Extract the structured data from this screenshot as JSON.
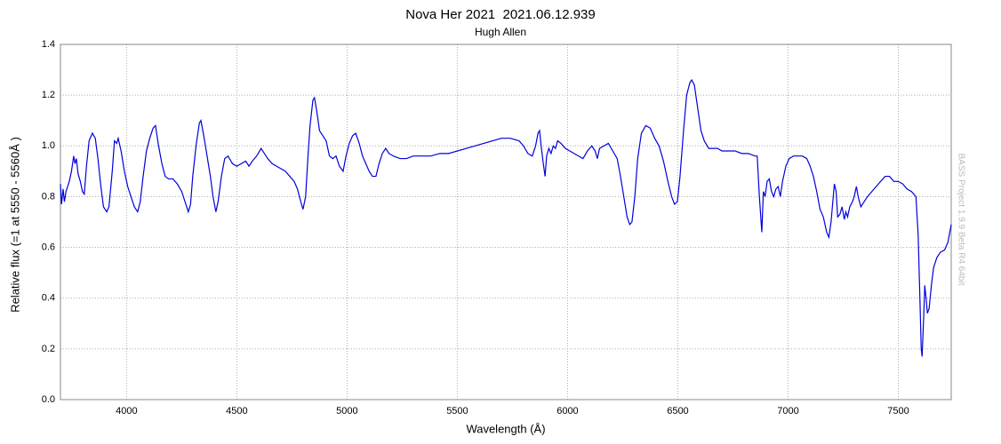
{
  "chart_data": {
    "type": "line",
    "title": "Nova Her 2021  2021.06.12.939",
    "subtitle": "Hugh Allen",
    "xlabel": "Wavelength (Å)",
    "ylabel": "Relative flux (=1 at 5550 - 5560Å )",
    "watermark": "BASS Project 1.9.9 Beta R4 64bit",
    "xlim": [
      3700,
      7740
    ],
    "ylim": [
      0,
      1.4
    ],
    "xticks": [
      4000,
      4500,
      5000,
      5500,
      6000,
      6500,
      7000,
      7500
    ],
    "yticks": [
      {
        "value": 0,
        "label": "0.0"
      },
      0.2,
      0.4,
      0.6,
      0.8,
      {
        "value": 1,
        "label": "1.0"
      },
      1.2,
      1.4
    ],
    "grid": true,
    "x": [
      3700,
      3705,
      3712,
      3718,
      3725,
      3740,
      3750,
      3760,
      3766,
      3772,
      3780,
      3790,
      3800,
      3808,
      3818,
      3830,
      3845,
      3858,
      3870,
      3882,
      3895,
      3910,
      3920,
      3935,
      3945,
      3955,
      3962,
      3975,
      3990,
      4005,
      4020,
      4035,
      4050,
      4062,
      4075,
      4090,
      4105,
      4120,
      4131,
      4145,
      4160,
      4175,
      4190,
      4210,
      4230,
      4250,
      4265,
      4280,
      4290,
      4300,
      4315,
      4330,
      4337,
      4350,
      4365,
      4380,
      4392,
      4405,
      4415,
      4430,
      4445,
      4460,
      4480,
      4500,
      4520,
      4540,
      4555,
      4570,
      4590,
      4610,
      4625,
      4640,
      4660,
      4680,
      4700,
      4720,
      4740,
      4760,
      4775,
      4790,
      4800,
      4812,
      4822,
      4832,
      4845,
      4852,
      4862,
      4875,
      4890,
      4905,
      4920,
      4935,
      4950,
      4965,
      4982,
      4995,
      5010,
      5025,
      5039,
      5055,
      5070,
      5085,
      5100,
      5115,
      5131,
      5145,
      5160,
      5175,
      5190,
      5210,
      5240,
      5270,
      5300,
      5340,
      5380,
      5420,
      5460,
      5500,
      5540,
      5580,
      5620,
      5660,
      5700,
      5740,
      5780,
      5800,
      5820,
      5840,
      5855,
      5866,
      5873,
      5880,
      5890,
      5898,
      5905,
      5915,
      5925,
      5935,
      5945,
      5955,
      5970,
      5990,
      6010,
      6030,
      6050,
      6070,
      6090,
      6110,
      6125,
      6135,
      6145,
      6165,
      6185,
      6205,
      6225,
      6240,
      6255,
      6270,
      6282,
      6292,
      6305,
      6318,
      6335,
      6355,
      6375,
      6395,
      6415,
      6435,
      6455,
      6472,
      6485,
      6498,
      6510,
      6525,
      6540,
      6555,
      6563,
      6575,
      6590,
      6605,
      6620,
      6640,
      6660,
      6680,
      6700,
      6730,
      6760,
      6790,
      6820,
      6850,
      6860,
      6870,
      6881,
      6888,
      6896,
      6905,
      6915,
      6925,
      6935,
      6945,
      6955,
      6965,
      6975,
      6990,
      7005,
      7025,
      7045,
      7065,
      7085,
      7100,
      7115,
      7130,
      7145,
      7160,
      7175,
      7185,
      7195,
      7210,
      7218,
      7225,
      7235,
      7245,
      7255,
      7262,
      7270,
      7280,
      7292,
      7300,
      7310,
      7318,
      7330,
      7345,
      7360,
      7380,
      7400,
      7420,
      7440,
      7460,
      7480,
      7500,
      7520,
      7540,
      7560,
      7580,
      7590,
      7598,
      7604,
      7608,
      7614,
      7620,
      7626,
      7632,
      7640,
      7650,
      7660,
      7675,
      7690,
      7710,
      7725,
      7740
    ],
    "series": [
      {
        "name": "Nova Her 2021",
        "color": "#0000dd",
        "values": [
          0.85,
          0.77,
          0.83,
          0.78,
          0.82,
          0.86,
          0.9,
          0.96,
          0.93,
          0.95,
          0.89,
          0.86,
          0.82,
          0.81,
          0.92,
          1.02,
          1.05,
          1.03,
          0.95,
          0.85,
          0.76,
          0.74,
          0.76,
          0.9,
          1.02,
          1.01,
          1.03,
          0.98,
          0.9,
          0.84,
          0.8,
          0.76,
          0.74,
          0.78,
          0.88,
          0.98,
          1.03,
          1.07,
          1.08,
          1.0,
          0.93,
          0.88,
          0.87,
          0.87,
          0.85,
          0.82,
          0.78,
          0.74,
          0.77,
          0.88,
          1.0,
          1.09,
          1.1,
          1.04,
          0.96,
          0.88,
          0.8,
          0.74,
          0.78,
          0.88,
          0.95,
          0.96,
          0.93,
          0.92,
          0.93,
          0.94,
          0.92,
          0.94,
          0.96,
          0.99,
          0.97,
          0.95,
          0.93,
          0.92,
          0.91,
          0.9,
          0.88,
          0.86,
          0.83,
          0.78,
          0.75,
          0.8,
          0.95,
          1.08,
          1.18,
          1.19,
          1.14,
          1.06,
          1.04,
          1.02,
          0.96,
          0.95,
          0.96,
          0.92,
          0.9,
          0.96,
          1.01,
          1.04,
          1.05,
          1.01,
          0.96,
          0.93,
          0.9,
          0.88,
          0.88,
          0.93,
          0.97,
          0.99,
          0.97,
          0.96,
          0.95,
          0.95,
          0.96,
          0.96,
          0.96,
          0.97,
          0.97,
          0.98,
          0.99,
          1.0,
          1.01,
          1.02,
          1.03,
          1.03,
          1.02,
          1.0,
          0.97,
          0.96,
          1.0,
          1.05,
          1.06,
          1.0,
          0.93,
          0.88,
          0.96,
          0.99,
          0.97,
          1.0,
          0.99,
          1.02,
          1.01,
          0.99,
          0.98,
          0.97,
          0.96,
          0.95,
          0.98,
          1.0,
          0.98,
          0.95,
          0.99,
          1.0,
          1.01,
          0.98,
          0.95,
          0.88,
          0.8,
          0.72,
          0.69,
          0.7,
          0.8,
          0.95,
          1.05,
          1.08,
          1.07,
          1.03,
          1.0,
          0.94,
          0.86,
          0.8,
          0.77,
          0.78,
          0.88,
          1.05,
          1.2,
          1.25,
          1.26,
          1.24,
          1.15,
          1.06,
          1.02,
          0.99,
          0.99,
          0.99,
          0.98,
          0.98,
          0.98,
          0.97,
          0.97,
          0.96,
          0.96,
          0.8,
          0.66,
          0.82,
          0.8,
          0.86,
          0.87,
          0.82,
          0.8,
          0.83,
          0.84,
          0.8,
          0.86,
          0.92,
          0.95,
          0.96,
          0.96,
          0.96,
          0.95,
          0.92,
          0.88,
          0.82,
          0.75,
          0.72,
          0.66,
          0.64,
          0.7,
          0.85,
          0.82,
          0.72,
          0.73,
          0.76,
          0.71,
          0.74,
          0.72,
          0.76,
          0.78,
          0.8,
          0.84,
          0.8,
          0.76,
          0.78,
          0.8,
          0.82,
          0.84,
          0.86,
          0.88,
          0.88,
          0.86,
          0.86,
          0.85,
          0.83,
          0.82,
          0.8,
          0.65,
          0.4,
          0.2,
          0.17,
          0.3,
          0.45,
          0.4,
          0.34,
          0.36,
          0.45,
          0.52,
          0.56,
          0.58,
          0.59,
          0.62,
          0.69
        ]
      }
    ]
  }
}
